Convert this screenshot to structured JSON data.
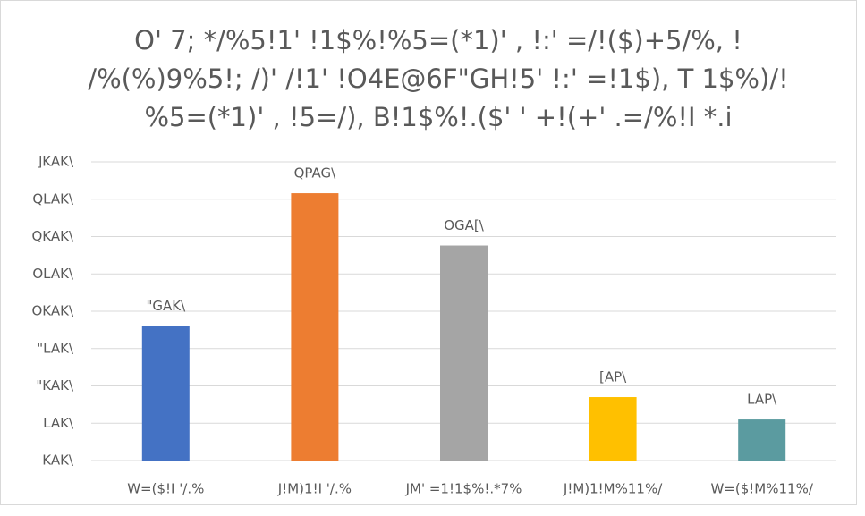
{
  "chart_data": {
    "type": "bar",
    "title": [
      "O' 7; */%5!1' !1$%!%5=(*1)' , !:' =/!($)+5/%, !",
      "/%(%)9%5!; /)' /!1' !O4E@6F\"GH!5' !:' =!1$), T 1$%)/!",
      "%5=(*1)' , !5=/), B!1$%!.($' ' +!(+' .=/%!I *.i"
    ],
    "categories": [
      "W=($!I '/.%",
      "J!M)1!I '/.%",
      "JM' =1!1$%!.*7%",
      "J!M)1!M%11%/",
      "W=($!M%11%/"
    ],
    "values": [
      18.0,
      35.8,
      28.8,
      8.5,
      5.5
    ],
    "value_labels": [
      "\"GAK\\",
      "QPAG\\",
      "OGA[\\",
      "[AP\\",
      "LAP\\"
    ],
    "colors": [
      "#4472c4",
      "#ed7d31",
      "#a5a5a5",
      "#ffc000",
      "#5b9ba0"
    ],
    "ylim": [
      0,
      40
    ],
    "yticks": [
      {
        "value": 0,
        "label": "KAK\\"
      },
      {
        "value": 5,
        "label": "LAK\\"
      },
      {
        "value": 10,
        "label": "\"KAK\\"
      },
      {
        "value": 15,
        "label": "\"LAK\\"
      },
      {
        "value": 20,
        "label": "OKAK\\"
      },
      {
        "value": 25,
        "label": "OLAK\\"
      },
      {
        "value": 30,
        "label": "QKAK\\"
      },
      {
        "value": 35,
        "label": "QLAK\\"
      },
      {
        "value": 40,
        "label": "]KAK\\"
      }
    ],
    "grid": true
  }
}
